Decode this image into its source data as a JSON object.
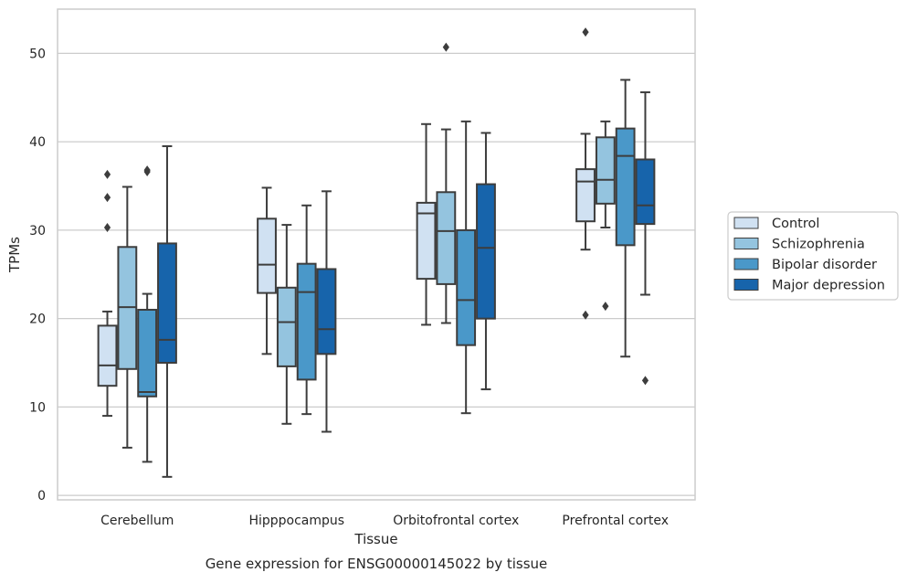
{
  "chart_data": {
    "type": "boxplot",
    "caption": "Gene expression for ENSG00000145022 by tissue",
    "xlabel": "Tissue",
    "ylabel": "TPMs",
    "ylim": [
      -0.5,
      55
    ],
    "yticks": [
      0,
      10,
      20,
      30,
      40,
      50
    ],
    "grid": "horizontal",
    "legend_position": "right",
    "categories": [
      "Cerebellum",
      "Hipppocampus",
      "Orbitofrontal cortex",
      "Prefrontal cortex"
    ],
    "series": [
      {
        "name": "Control",
        "color": "#d0e1f2",
        "boxes": [
          {
            "whislo": 9.0,
            "q1": 12.4,
            "med": 14.7,
            "q3": 19.2,
            "whishi": 20.8,
            "fliers": [
              30.3,
              33.7,
              36.3
            ]
          },
          {
            "whislo": 16.0,
            "q1": 22.9,
            "med": 26.1,
            "q3": 31.3,
            "whishi": 34.8,
            "fliers": []
          },
          {
            "whislo": 19.3,
            "q1": 24.5,
            "med": 31.9,
            "q3": 33.1,
            "whishi": 42.0,
            "fliers": []
          },
          {
            "whislo": 27.8,
            "q1": 31.0,
            "med": 35.5,
            "q3": 36.9,
            "whishi": 40.9,
            "fliers": [
              20.4,
              52.4
            ]
          }
        ]
      },
      {
        "name": "Schizophrenia",
        "color": "#94c4df",
        "boxes": [
          {
            "whislo": 5.4,
            "q1": 14.3,
            "med": 21.3,
            "q3": 28.1,
            "whishi": 34.9,
            "fliers": []
          },
          {
            "whislo": 8.1,
            "q1": 14.6,
            "med": 19.6,
            "q3": 23.5,
            "whishi": 30.6,
            "fliers": []
          },
          {
            "whislo": 19.5,
            "q1": 23.9,
            "med": 29.9,
            "q3": 34.3,
            "whishi": 41.4,
            "fliers": [
              50.7
            ]
          },
          {
            "whislo": 30.3,
            "q1": 33.0,
            "med": 35.7,
            "q3": 40.5,
            "whishi": 42.3,
            "fliers": [
              21.4
            ]
          }
        ]
      },
      {
        "name": "Bipolar disorder",
        "color": "#4a98c9",
        "boxes": [
          {
            "whislo": 3.8,
            "q1": 11.2,
            "med": 11.7,
            "q3": 21.0,
            "whishi": 22.8,
            "fliers": [
              36.6,
              36.8
            ]
          },
          {
            "whislo": 9.2,
            "q1": 13.1,
            "med": 23.0,
            "q3": 26.2,
            "whishi": 32.8,
            "fliers": []
          },
          {
            "whislo": 9.3,
            "q1": 17.0,
            "med": 22.1,
            "q3": 30.0,
            "whishi": 42.3,
            "fliers": []
          },
          {
            "whislo": 15.7,
            "q1": 28.3,
            "med": 38.4,
            "q3": 41.5,
            "whishi": 47.0,
            "fliers": []
          }
        ]
      },
      {
        "name": "Major depression",
        "color": "#1764ab",
        "boxes": [
          {
            "whislo": 2.1,
            "q1": 15.0,
            "med": 17.6,
            "q3": 28.5,
            "whishi": 39.5,
            "fliers": []
          },
          {
            "whislo": 7.2,
            "q1": 16.0,
            "med": 18.8,
            "q3": 25.6,
            "whishi": 34.4,
            "fliers": []
          },
          {
            "whislo": 12.0,
            "q1": 20.0,
            "med": 28.0,
            "q3": 35.2,
            "whishi": 41.0,
            "fliers": []
          },
          {
            "whislo": 22.7,
            "q1": 30.7,
            "med": 32.8,
            "q3": 38.0,
            "whishi": 45.6,
            "fliers": [
              13.0
            ]
          }
        ]
      }
    ]
  }
}
